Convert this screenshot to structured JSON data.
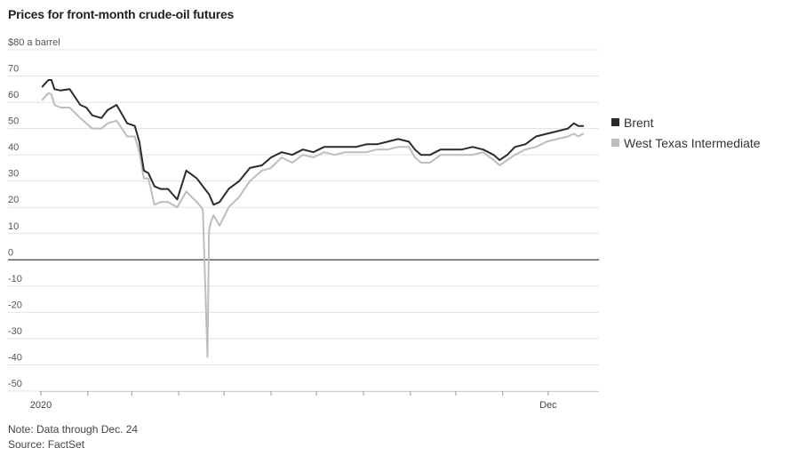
{
  "title": "Prices for front-month crude-oil futures",
  "note": "Note: Data through Dec. 24",
  "source": "Source: FactSet",
  "chart_data": {
    "type": "line",
    "title": "Prices for front-month crude-oil futures",
    "ylabel": "$80 a barrel",
    "ylim": [
      -50,
      80
    ],
    "yticks": [
      80,
      70,
      60,
      50,
      40,
      30,
      20,
      10,
      0,
      -10,
      -20,
      -30,
      -40,
      -50
    ],
    "ytick_labels": [
      "$80 a barrel",
      "70",
      "60",
      "50",
      "40",
      "30",
      "20",
      "10",
      "0",
      "-10",
      "-20",
      "-30",
      "-40",
      "-50"
    ],
    "xlim": [
      "2020-01-01",
      "2020-12-31"
    ],
    "xtick_dates": [
      "2020-01-01",
      "2020-02-01",
      "2020-03-01",
      "2020-04-01",
      "2020-05-01",
      "2020-06-01",
      "2020-07-01",
      "2020-08-01",
      "2020-09-01",
      "2020-10-01",
      "2020-11-01",
      "2020-12-01"
    ],
    "xtick_labels": {
      "2020-01-01": "2020",
      "2020-12-01": "Dec"
    },
    "grid": true,
    "legend_position": "right",
    "series": [
      {
        "name": "Brent",
        "color": "#2b2b2b",
        "x": [
          "2020-01-02",
          "2020-01-06",
          "2020-01-08",
          "2020-01-10",
          "2020-01-14",
          "2020-01-20",
          "2020-01-27",
          "2020-01-31",
          "2020-02-04",
          "2020-02-10",
          "2020-02-14",
          "2020-02-20",
          "2020-02-27",
          "2020-03-03",
          "2020-03-06",
          "2020-03-09",
          "2020-03-12",
          "2020-03-16",
          "2020-03-20",
          "2020-03-25",
          "2020-03-31",
          "2020-04-06",
          "2020-04-13",
          "2020-04-17",
          "2020-04-21",
          "2020-04-24",
          "2020-04-28",
          "2020-05-04",
          "2020-05-11",
          "2020-05-18",
          "2020-05-26",
          "2020-06-01",
          "2020-06-08",
          "2020-06-15",
          "2020-06-22",
          "2020-06-29",
          "2020-07-06",
          "2020-07-13",
          "2020-07-20",
          "2020-07-27",
          "2020-08-03",
          "2020-08-10",
          "2020-08-17",
          "2020-08-24",
          "2020-08-31",
          "2020-09-04",
          "2020-09-08",
          "2020-09-14",
          "2020-09-21",
          "2020-09-28",
          "2020-10-05",
          "2020-10-12",
          "2020-10-19",
          "2020-10-26",
          "2020-10-30",
          "2020-11-04",
          "2020-11-09",
          "2020-11-16",
          "2020-11-23",
          "2020-11-30",
          "2020-12-07",
          "2020-12-14",
          "2020-12-18",
          "2020-12-21",
          "2020-12-24"
        ],
        "y": [
          66,
          68.5,
          68.5,
          65,
          64.5,
          65,
          59,
          58,
          55,
          54,
          57,
          59,
          52,
          51,
          45,
          34,
          33,
          28,
          27,
          27,
          23,
          34,
          31,
          28,
          25,
          21,
          22,
          27,
          30,
          35,
          36,
          39,
          41,
          40,
          42,
          41,
          43,
          43,
          43,
          43,
          44,
          44,
          45,
          46,
          45,
          42,
          40,
          40,
          42,
          42,
          42,
          43,
          42,
          40,
          38,
          40,
          43,
          44,
          47,
          48,
          49,
          50,
          52,
          51,
          51
        ]
      },
      {
        "name": "West Texas Intermediate",
        "color": "#bdbdbd",
        "x": [
          "2020-01-02",
          "2020-01-06",
          "2020-01-08",
          "2020-01-10",
          "2020-01-14",
          "2020-01-20",
          "2020-01-27",
          "2020-01-31",
          "2020-02-04",
          "2020-02-10",
          "2020-02-14",
          "2020-02-20",
          "2020-02-27",
          "2020-03-03",
          "2020-03-06",
          "2020-03-09",
          "2020-03-12",
          "2020-03-16",
          "2020-03-20",
          "2020-03-25",
          "2020-03-31",
          "2020-04-06",
          "2020-04-13",
          "2020-04-16",
          "2020-04-17",
          "2020-04-20",
          "2020-04-21",
          "2020-04-22",
          "2020-04-24",
          "2020-04-28",
          "2020-05-04",
          "2020-05-11",
          "2020-05-18",
          "2020-05-26",
          "2020-06-01",
          "2020-06-08",
          "2020-06-15",
          "2020-06-22",
          "2020-06-29",
          "2020-07-06",
          "2020-07-13",
          "2020-07-20",
          "2020-07-27",
          "2020-08-03",
          "2020-08-10",
          "2020-08-17",
          "2020-08-24",
          "2020-08-31",
          "2020-09-04",
          "2020-09-08",
          "2020-09-14",
          "2020-09-21",
          "2020-09-28",
          "2020-10-05",
          "2020-10-12",
          "2020-10-19",
          "2020-10-26",
          "2020-10-30",
          "2020-11-04",
          "2020-11-09",
          "2020-11-16",
          "2020-11-23",
          "2020-11-30",
          "2020-12-07",
          "2020-12-14",
          "2020-12-18",
          "2020-12-21",
          "2020-12-24"
        ],
        "y": [
          61,
          63.5,
          63,
          59,
          58,
          58,
          54,
          52,
          50,
          50,
          52,
          53,
          47,
          47,
          41,
          31,
          31,
          21,
          22,
          22,
          20,
          26,
          22,
          20,
          19,
          -37,
          11,
          14,
          17,
          13,
          20,
          24,
          30,
          34,
          35,
          39,
          37,
          40,
          39,
          41,
          40,
          41,
          41,
          41,
          42,
          42,
          43,
          43,
          39,
          37,
          37,
          40,
          40,
          40,
          40,
          41,
          38,
          36,
          38,
          40,
          42,
          43,
          45,
          46,
          47,
          48,
          47,
          48
        ]
      }
    ]
  }
}
